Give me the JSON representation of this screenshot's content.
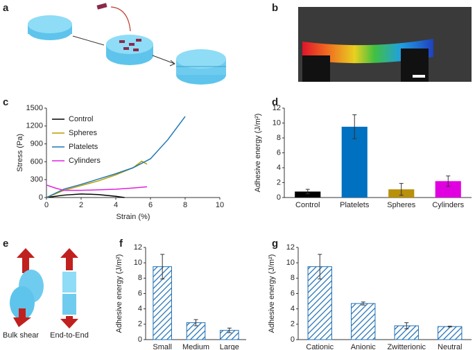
{
  "panel_labels": {
    "a": "a",
    "b": "b",
    "e": "e"
  },
  "illustration_e": {
    "left": "Bulk shear",
    "right": "End-to-End"
  },
  "chart_data": [
    {
      "type": "line",
      "panel_label": "c",
      "xlabel": "Strain (%)",
      "ylabel": "Stress (Pa)",
      "xlim": [
        0,
        10
      ],
      "xticks": [
        0,
        2,
        4,
        6,
        8,
        10
      ],
      "ylim": [
        0,
        1500
      ],
      "yticks": [
        0,
        300,
        600,
        900,
        1200,
        1500
      ],
      "legend": "upper left",
      "series": [
        {
          "name": "Control",
          "color": "#000000",
          "x": [
            0,
            1,
            2,
            3,
            4,
            4.5
          ],
          "values": [
            0,
            40,
            60,
            50,
            20,
            0
          ]
        },
        {
          "name": "Spheres",
          "color": "#b89b00",
          "x": [
            0,
            1,
            2,
            3,
            4,
            5,
            5.5,
            5.8
          ],
          "values": [
            0,
            120,
            200,
            280,
            380,
            500,
            610,
            560
          ]
        },
        {
          "name": "Platelets",
          "color": "#1f77b4",
          "x": [
            0,
            1,
            2,
            3,
            4,
            5,
            6,
            7,
            8
          ],
          "values": [
            0,
            140,
            220,
            310,
            400,
            500,
            650,
            970,
            1360
          ]
        },
        {
          "name": "Cylinders",
          "color": "#e020e0",
          "x": [
            0,
            0.5,
            1,
            2,
            3,
            4,
            5,
            5.8
          ],
          "values": [
            210,
            160,
            120,
            120,
            130,
            140,
            160,
            180
          ]
        }
      ]
    },
    {
      "type": "bar",
      "panel_label": "d",
      "ylabel": "Adhesive energy (J/m²)",
      "categories": [
        "Control",
        "Platelets",
        "Spheres",
        "Cylinders"
      ],
      "values": [
        0.8,
        9.5,
        1.1,
        2.2
      ],
      "errors": [
        0.3,
        1.6,
        0.8,
        0.7
      ],
      "colors": [
        "#000000",
        "#0070c0",
        "#b8900a",
        "#e000e0"
      ],
      "hatch": false,
      "ylim": [
        0,
        12
      ],
      "yticks": [
        0,
        2,
        4,
        6,
        8,
        10,
        12
      ]
    },
    {
      "type": "bar",
      "panel_label": "f",
      "ylabel": "Adhesive energy (J/m²)",
      "categories": [
        "Small",
        "Medium",
        "Large"
      ],
      "values": [
        9.5,
        2.2,
        1.2
      ],
      "errors": [
        1.6,
        0.4,
        0.3
      ],
      "color": "#1f6fb4",
      "hatch": true,
      "ylim": [
        0,
        12
      ],
      "yticks": [
        0,
        2,
        4,
        6,
        8,
        10,
        12
      ]
    },
    {
      "type": "bar",
      "panel_label": "g",
      "ylabel": "Adhesive energy (J/m²)",
      "categories": [
        "Cationic",
        "Anionic",
        "Zwitterionic",
        "Neutral"
      ],
      "values": [
        9.5,
        4.7,
        1.8,
        1.7
      ],
      "errors": [
        1.6,
        0.2,
        0.4,
        0.05
      ],
      "color": "#1f6fb4",
      "hatch": true,
      "ylim": [
        0,
        12
      ],
      "yticks": [
        0,
        2,
        4,
        6,
        8,
        10,
        12
      ]
    }
  ]
}
